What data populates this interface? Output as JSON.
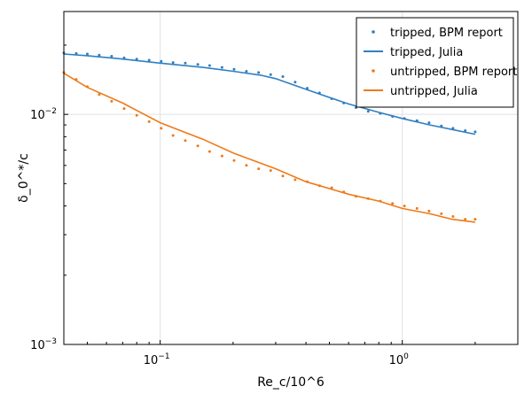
{
  "chart_data": {
    "type": "line",
    "xlabel": "Re_c/10^6",
    "ylabel": "δ_0^*/c",
    "xscale": "log",
    "yscale": "log",
    "xlim": [
      0.04,
      3.0
    ],
    "ylim": [
      0.001,
      0.028
    ],
    "grid": true,
    "legend_position": "top-right",
    "x_ticks": [
      {
        "value": 0.1,
        "base": "10",
        "exp": "−1"
      },
      {
        "value": 1.0,
        "base": "10",
        "exp": "0"
      }
    ],
    "y_ticks": [
      {
        "value": 0.001,
        "base": "10",
        "exp": "−3"
      },
      {
        "value": 0.01,
        "base": "10",
        "exp": "−2"
      }
    ],
    "series": [
      {
        "name": "tripped, BPM report",
        "kind": "scatter",
        "color": "#2f7fc1",
        "x": [
          0.04,
          0.045,
          0.05,
          0.056,
          0.063,
          0.071,
          0.08,
          0.09,
          0.101,
          0.113,
          0.127,
          0.143,
          0.16,
          0.18,
          0.202,
          0.227,
          0.255,
          0.286,
          0.321,
          0.361,
          0.405,
          0.455,
          0.511,
          0.573,
          0.644,
          0.723,
          0.811,
          0.911,
          1.02,
          1.15,
          1.29,
          1.45,
          1.62,
          1.82,
          2.0
        ],
        "y": [
          0.0185,
          0.0184,
          0.0183,
          0.0181,
          0.0179,
          0.0176,
          0.0174,
          0.0172,
          0.017,
          0.0168,
          0.0167,
          0.0165,
          0.0163,
          0.016,
          0.0157,
          0.0154,
          0.0152,
          0.0149,
          0.0146,
          0.0138,
          0.013,
          0.0124,
          0.0117,
          0.0112,
          0.0107,
          0.0103,
          0.0101,
          0.0098,
          0.0096,
          0.0094,
          0.0092,
          0.0089,
          0.0087,
          0.0085,
          0.0084
        ]
      },
      {
        "name": "tripped, Julia",
        "kind": "line",
        "color": "#2f7fc1",
        "x": [
          0.04,
          0.05,
          0.07,
          0.1,
          0.15,
          0.2,
          0.26,
          0.3,
          0.35,
          0.45,
          0.6,
          0.8,
          1.0,
          1.3,
          1.6,
          2.0
        ],
        "y": [
          0.0183,
          0.018,
          0.0174,
          0.0167,
          0.016,
          0.0154,
          0.0148,
          0.0143,
          0.0135,
          0.0123,
          0.0111,
          0.0102,
          0.0096,
          0.009,
          0.0086,
          0.0082
        ]
      },
      {
        "name": "untripped, BPM report",
        "kind": "scatter",
        "color": "#ee7a1a",
        "x": [
          0.04,
          0.045,
          0.05,
          0.056,
          0.063,
          0.071,
          0.08,
          0.09,
          0.101,
          0.113,
          0.127,
          0.143,
          0.16,
          0.18,
          0.202,
          0.227,
          0.255,
          0.286,
          0.321,
          0.361,
          0.405,
          0.455,
          0.511,
          0.573,
          0.644,
          0.723,
          0.811,
          0.911,
          1.02,
          1.15,
          1.29,
          1.45,
          1.62,
          1.82,
          2.0
        ],
        "y": [
          0.0152,
          0.0142,
          0.0132,
          0.0122,
          0.0114,
          0.0106,
          0.0099,
          0.0093,
          0.0087,
          0.0081,
          0.0077,
          0.0073,
          0.0069,
          0.0066,
          0.0063,
          0.006,
          0.0058,
          0.0057,
          0.0054,
          0.0052,
          0.0051,
          0.0049,
          0.0048,
          0.0046,
          0.0044,
          0.0043,
          0.0042,
          0.0041,
          0.004,
          0.0039,
          0.0038,
          0.0037,
          0.0036,
          0.0035,
          0.0035
        ]
      },
      {
        "name": "untripped, Julia",
        "kind": "line",
        "color": "#ee7a1a",
        "x": [
          0.04,
          0.05,
          0.07,
          0.1,
          0.15,
          0.2,
          0.3,
          0.4,
          0.6,
          0.8,
          1.0,
          1.3,
          1.6,
          2.0
        ],
        "y": [
          0.0151,
          0.0131,
          0.0112,
          0.0092,
          0.0078,
          0.0068,
          0.0058,
          0.0051,
          0.0045,
          0.0042,
          0.0039,
          0.0037,
          0.0035,
          0.0034
        ]
      }
    ]
  }
}
